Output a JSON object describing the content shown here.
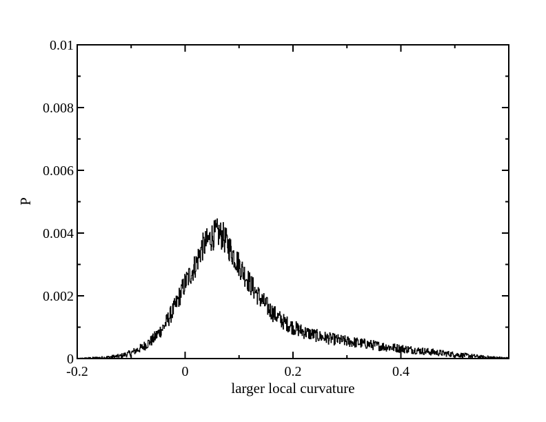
{
  "chart_data": {
    "type": "line",
    "title": "",
    "xlabel": "larger local curvature",
    "ylabel": "P",
    "xlim": [
      -0.2,
      0.6
    ],
    "ylim": [
      0,
      0.01
    ],
    "grid": false,
    "legend": "none",
    "line_color": "#000000",
    "x_ticks": [
      -0.2,
      0,
      0.2,
      0.4
    ],
    "x_tick_labels": [
      "-0.2",
      "0",
      "0.2",
      "0.4"
    ],
    "y_ticks": [
      0,
      0.002,
      0.004,
      0.006,
      0.008,
      0.01
    ],
    "y_tick_labels": [
      "0",
      "0.002",
      "0.004",
      "0.006",
      "0.008",
      "0.01"
    ],
    "series": [
      {
        "x": [
          -0.2,
          -0.15,
          -0.12,
          -0.1,
          -0.08,
          -0.06,
          -0.04,
          -0.02,
          0,
          0.02,
          0.03,
          0.04,
          0.05,
          0.06,
          0.07,
          0.08,
          0.09,
          0.1,
          0.12,
          0.14,
          0.16,
          0.18,
          0.2,
          0.22,
          0.25,
          0.28,
          0.3,
          0.33,
          0.36,
          0.4,
          0.45,
          0.5,
          0.55,
          0.6
        ],
        "y": [
          0.0,
          3e-05,
          8e-05,
          0.00018,
          0.00035,
          0.0006,
          0.001,
          0.0016,
          0.0024,
          0.003,
          0.0035,
          0.0037,
          0.0039,
          0.004,
          0.0039,
          0.0036,
          0.0033,
          0.003,
          0.0024,
          0.0019,
          0.0015,
          0.0012,
          0.001,
          0.00085,
          0.0007,
          0.0006,
          0.00055,
          0.00048,
          0.0004,
          0.00032,
          0.00022,
          0.00013,
          5e-05,
          1e-05
        ]
      }
    ]
  }
}
